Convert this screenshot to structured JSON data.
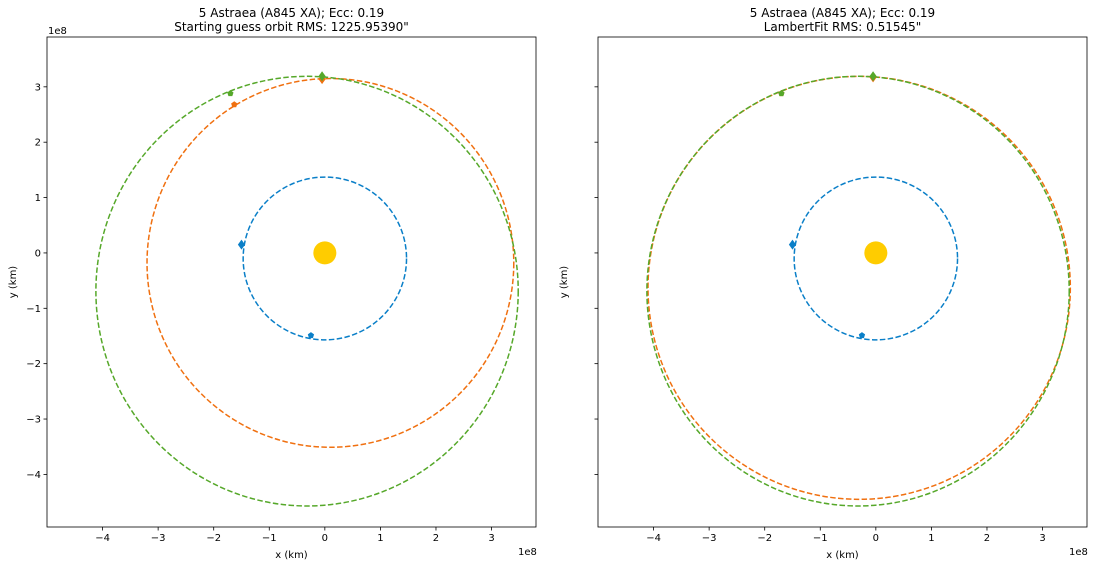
{
  "chart_data": [
    {
      "type": "scatter",
      "title": "5 Astraea (A845 XA); Ecc: 0.19",
      "subtitle": "Starting guess orbit RMS: 1225.95390\"",
      "xlabel": "x (km)",
      "ylabel": "y (km)",
      "axis_multiplier": "1e8",
      "xlim": [
        -5.0,
        3.8
      ],
      "ylim": [
        -4.95,
        3.9
      ],
      "xticks": [
        "−4",
        "−3",
        "−2",
        "−1",
        "0",
        "1",
        "2",
        "3"
      ],
      "yticks": [
        "−4",
        "−3",
        "−2",
        "−1",
        "0",
        "1",
        "2",
        "3"
      ],
      "yticks_visible": true,
      "sun": {
        "x": 0,
        "y": 0,
        "color": "#ffcc00"
      },
      "series": [
        {
          "color": "#0a7fc8",
          "orbit": {
            "cx": 0.0,
            "cy": -0.1,
            "rx": 1.47,
            "ry": 1.47
          },
          "diamond": {
            "x": -1.5,
            "y": 0.15
          },
          "pentagon": {
            "x": -0.25,
            "y": -1.49
          }
        },
        {
          "color": "#f07010",
          "orbit": {
            "cx": 0.1,
            "cy": -0.18,
            "rx": 3.3,
            "ry": 3.33
          },
          "diamond": {
            "x": -0.05,
            "y": 3.14
          },
          "pentagon": {
            "x": -1.63,
            "y": 2.68
          }
        },
        {
          "color": "#56a82a",
          "orbit": {
            "cx": -0.32,
            "cy": -0.69,
            "rx": 3.8,
            "ry": 3.88
          },
          "diamond": {
            "x": -0.05,
            "y": 3.19
          },
          "pentagon": {
            "x": -1.7,
            "y": 2.88
          }
        }
      ]
    },
    {
      "type": "scatter",
      "title": "5 Astraea (A845 XA); Ecc: 0.19",
      "subtitle": "LambertFit RMS: 0.51545\"",
      "xlabel": "x (km)",
      "ylabel": "y (km)",
      "axis_multiplier": "1e8",
      "xlim": [
        -5.0,
        3.8
      ],
      "ylim": [
        -4.95,
        3.9
      ],
      "xticks": [
        "−4",
        "−3",
        "−2",
        "−1",
        "0",
        "1",
        "2",
        "3"
      ],
      "yticks": [],
      "yticks_visible": false,
      "sun": {
        "x": 0,
        "y": 0,
        "color": "#ffcc00"
      },
      "series": [
        {
          "color": "#0a7fc8",
          "orbit": {
            "cx": 0.0,
            "cy": -0.1,
            "rx": 1.47,
            "ry": 1.47
          },
          "diamond": {
            "x": -1.5,
            "y": 0.15
          },
          "pentagon": {
            "x": -0.25,
            "y": -1.49
          }
        },
        {
          "color": "#f07010",
          "orbit": {
            "cx": -0.3,
            "cy": -0.63,
            "rx": 3.8,
            "ry": 3.82
          },
          "diamond": {
            "x": -0.05,
            "y": 3.17
          },
          "pentagon": {
            "x": -1.7,
            "y": 2.88
          }
        },
        {
          "color": "#56a82a",
          "orbit": {
            "cx": -0.32,
            "cy": -0.69,
            "rx": 3.8,
            "ry": 3.88
          },
          "diamond": {
            "x": -0.05,
            "y": 3.19
          },
          "pentagon": {
            "x": -1.7,
            "y": 2.88
          }
        }
      ]
    }
  ]
}
